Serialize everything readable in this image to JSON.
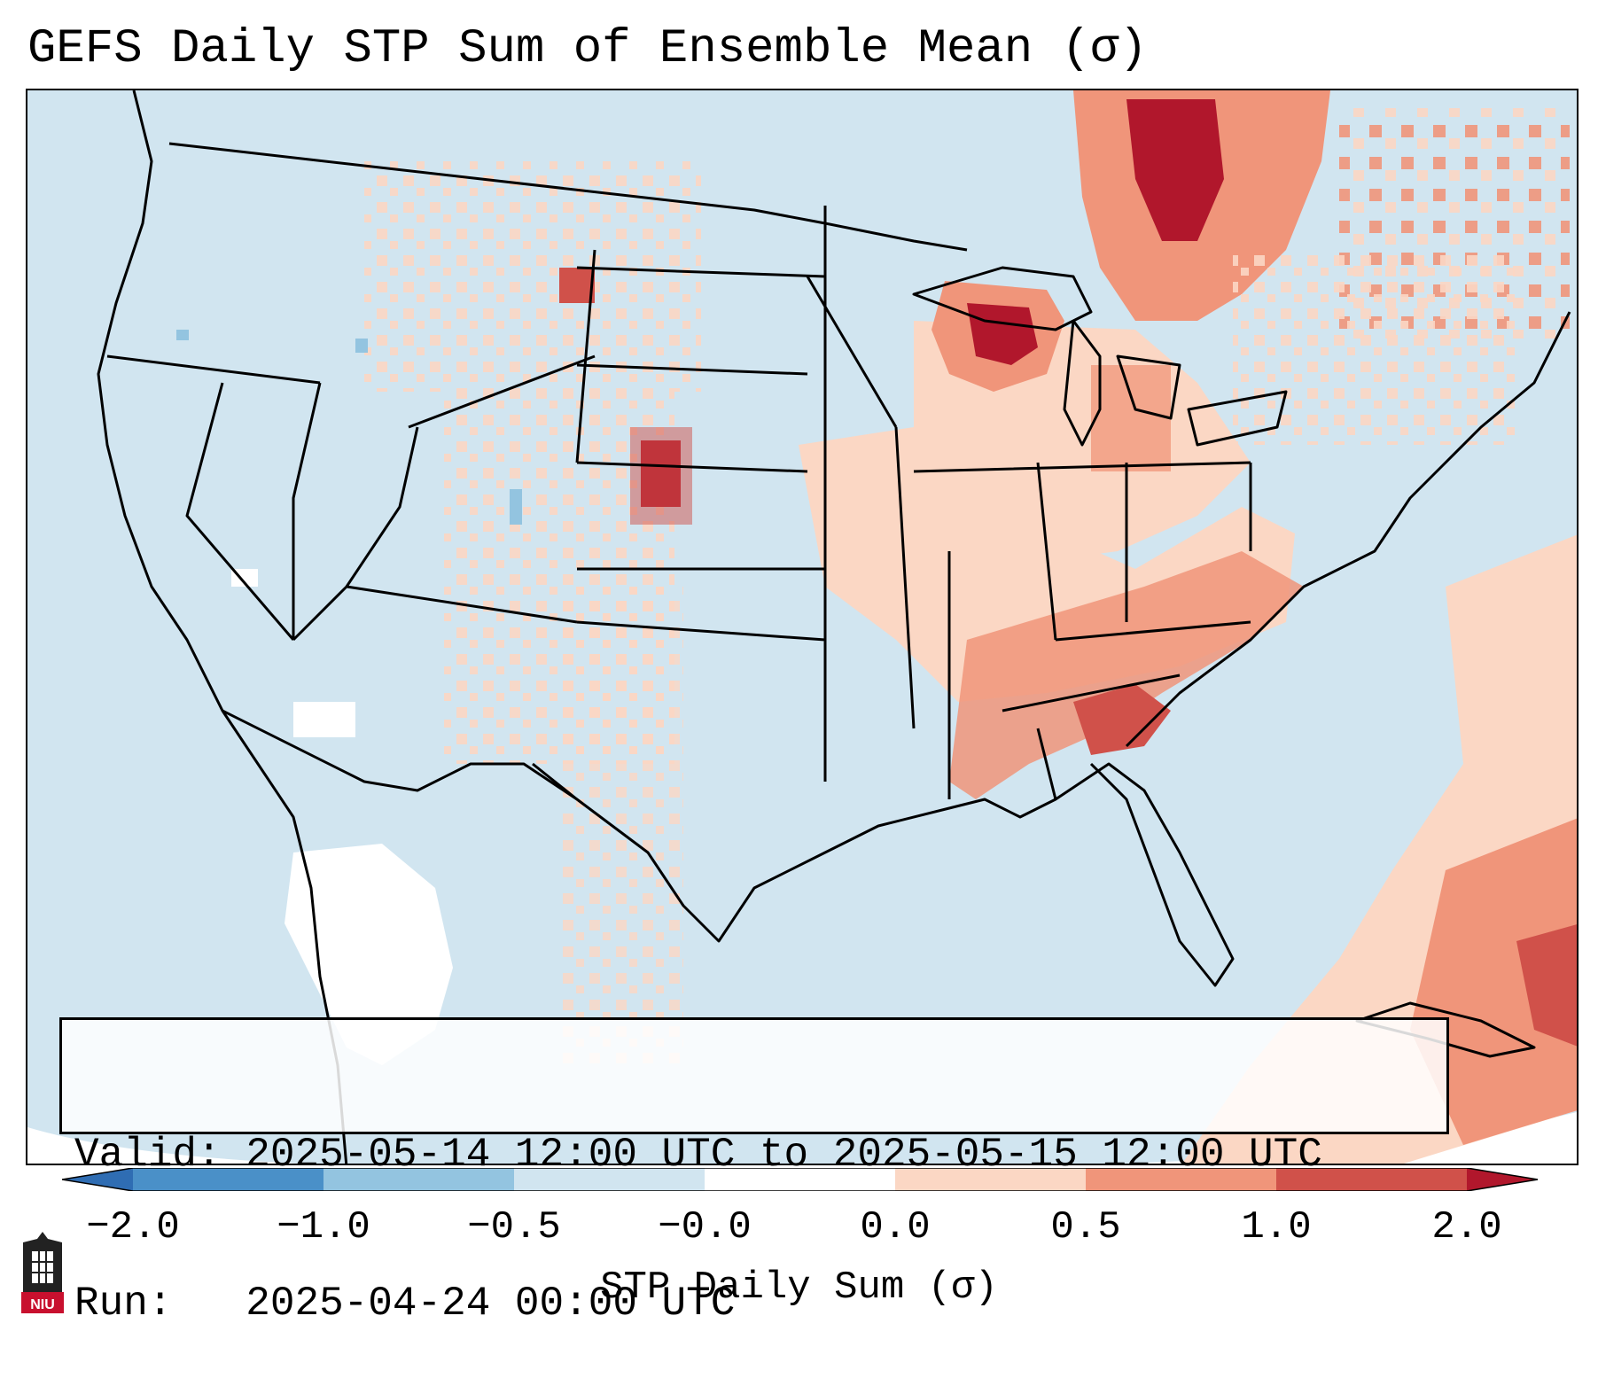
{
  "title": "GEFS Daily STP Sum of Ensemble Mean (σ)",
  "info": {
    "valid_label": "Valid:",
    "valid_value": "2025-05-14 12:00 UTC to 2025-05-15 12:00 UTC",
    "run_label": "Run:",
    "run_value": "2025-04-24 00:00 UTC"
  },
  "colorbar": {
    "label": "STP Daily Sum (σ)",
    "ticks": [
      "−2.0",
      "−1.0",
      "−0.5",
      "−0.0",
      "0.0",
      "0.5",
      "1.0",
      "2.0"
    ],
    "colors": [
      "#2f6db3",
      "#4a90c8",
      "#93c4e0",
      "#d1e5f0",
      "#ffffff",
      "#fbd7c4",
      "#f0957a",
      "#d0514a",
      "#b1172c"
    ],
    "extend": "both"
  },
  "map": {
    "region": "Contiguous United States",
    "background_color": "#d1e5f0",
    "outside_domain_color": "#ffffff",
    "highlighted_areas": [
      {
        "name": "Wisconsin / Upper Peninsula",
        "level": "2.0"
      },
      {
        "name": "Ontario / Quebec",
        "level": "1.0"
      },
      {
        "name": "Nebraska Panhandle",
        "level": "2.0"
      },
      {
        "name": "Tennessee Valley / Alabama",
        "level": "1.0"
      },
      {
        "name": "Western Atlantic",
        "level": "1.0"
      }
    ]
  },
  "logo": {
    "text": "NIU"
  }
}
